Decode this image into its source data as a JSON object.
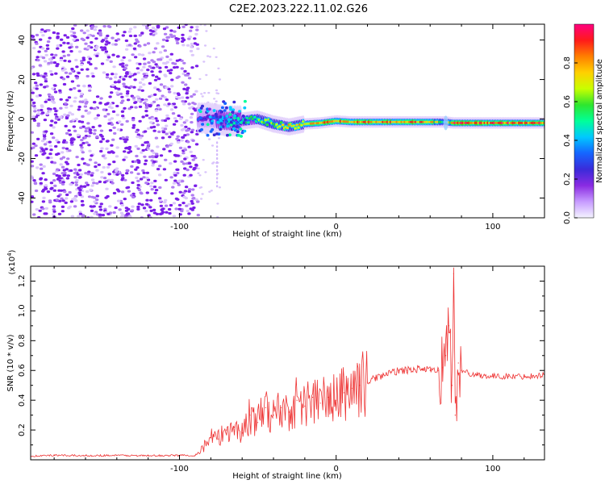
{
  "figure_title": "C2E2.2023.222.11.02.G26",
  "colors": {
    "snr_line": "#ee3333",
    "axis": "#000000",
    "spectrogram_scatter": "#7a1ee8",
    "colormap": [
      "#f4f4ff",
      "#c79bff",
      "#8a2be2",
      "#3b2bd9",
      "#1565ff",
      "#00c8ff",
      "#00ff99",
      "#2ee62e",
      "#c8ff00",
      "#ffd000",
      "#ff7f00",
      "#ff1a1a",
      "#ff0080"
    ]
  },
  "chart_data": [
    {
      "type": "heatmap",
      "title": "",
      "xlabel": "Height of straight line (km)",
      "ylabel": "Frequency (Hz)",
      "xlim": [
        -195,
        133
      ],
      "ylim": [
        -50,
        48
      ],
      "x_ticks": [
        -100,
        0,
        100
      ],
      "y_ticks": [
        -40,
        -20,
        0,
        20,
        40
      ],
      "x_tick_labels": [
        "-100",
        "0",
        "100"
      ],
      "y_tick_labels": [
        "-40",
        "-20",
        "0",
        "20",
        "40"
      ],
      "colorbar": {
        "label": "Normalized spectral amplitude",
        "range": [
          0.0,
          1.0
        ],
        "ticks": [
          0.0,
          0.2,
          0.4,
          0.6,
          0.8
        ],
        "tick_labels": [
          "0.0",
          "0.2",
          "0.4",
          "0.6",
          "0.8"
        ]
      },
      "noise_region_x": [
        -195,
        -88
      ],
      "signal_track": [
        {
          "x": -88,
          "freq": 0.5,
          "amp": 0.3
        },
        {
          "x": -80,
          "freq": 0.5,
          "amp": 0.3
        },
        {
          "x": -70,
          "freq": -1.0,
          "amp": 0.45
        },
        {
          "x": -60,
          "freq": -1.0,
          "amp": 0.55
        },
        {
          "x": -50,
          "freq": 0.0,
          "amp": 0.6
        },
        {
          "x": -40,
          "freq": -2.5,
          "amp": 0.7
        },
        {
          "x": -30,
          "freq": -4.0,
          "amp": 0.8
        },
        {
          "x": -20,
          "freq": -2.5,
          "amp": 0.8
        },
        {
          "x": -10,
          "freq": -2.0,
          "amp": 0.85
        },
        {
          "x": 0,
          "freq": -1.0,
          "amp": 0.9
        },
        {
          "x": 10,
          "freq": -1.5,
          "amp": 0.9
        },
        {
          "x": 20,
          "freq": -1.5,
          "amp": 0.9
        },
        {
          "x": 40,
          "freq": -1.5,
          "amp": 0.9
        },
        {
          "x": 60,
          "freq": -1.5,
          "amp": 0.9
        },
        {
          "x": 70,
          "freq": -1.5,
          "amp": 0.5
        },
        {
          "x": 75,
          "freq": -2.0,
          "amp": 0.95
        },
        {
          "x": 100,
          "freq": -2.0,
          "amp": 0.95
        },
        {
          "x": 133,
          "freq": -2.0,
          "amp": 0.95
        }
      ]
    },
    {
      "type": "line",
      "title": "",
      "xlabel": "Height of straight line (km)",
      "ylabel": "SNR (10 * v/v)",
      "y_scale_label": "(x10",
      "y_scale_exponent": "4",
      "y_scale_close": ")",
      "xlim": [
        -195,
        133
      ],
      "ylim": [
        0,
        1.3
      ],
      "x_ticks": [
        -100,
        0,
        100
      ],
      "y_ticks": [
        0.2,
        0.4,
        0.6,
        0.8,
        1.0,
        1.2
      ],
      "x_tick_labels": [
        "-100",
        "0",
        "100"
      ],
      "y_tick_labels": [
        "0.2",
        "0.4",
        "0.6",
        "0.8",
        "1.0",
        "1.2"
      ],
      "series": [
        {
          "x": [
            -195,
            -180,
            -160,
            -140,
            -120,
            -100,
            -90,
            -85,
            -80,
            -75,
            -70,
            -65,
            -60,
            -55,
            -50,
            -45,
            -40,
            -35,
            -30,
            -25,
            -20,
            -15,
            -10,
            -5,
            0,
            5,
            10,
            15,
            20,
            25,
            30,
            35,
            40,
            45,
            50,
            55,
            60,
            65,
            68,
            70,
            72,
            74,
            75,
            76,
            78,
            80,
            85,
            90,
            100,
            110,
            120,
            133
          ],
          "y": [
            0.025,
            0.03,
            0.028,
            0.03,
            0.027,
            0.03,
            0.03,
            0.08,
            0.15,
            0.14,
            0.2,
            0.22,
            0.18,
            0.3,
            0.25,
            0.35,
            0.3,
            0.35,
            0.32,
            0.4,
            0.36,
            0.42,
            0.38,
            0.42,
            0.4,
            0.45,
            0.48,
            0.5,
            0.52,
            0.55,
            0.57,
            0.58,
            0.6,
            0.6,
            0.61,
            0.61,
            0.6,
            0.6,
            0.62,
            0.7,
            0.9,
            0.5,
            1.25,
            0.3,
            0.65,
            0.6,
            0.58,
            0.57,
            0.56,
            0.56,
            0.56,
            0.57
          ]
        }
      ]
    }
  ]
}
